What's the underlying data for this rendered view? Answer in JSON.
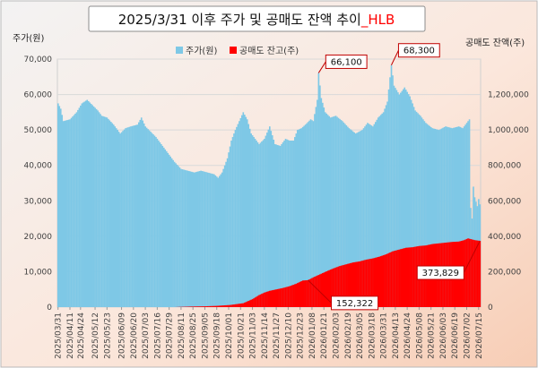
{
  "chart_data": {
    "type": "area",
    "title_main": "2025/3/31 이후 주가 및 공매도 잔액 추이",
    "title_ticker": "_HLB",
    "ylabel_left": "주가(원)",
    "ylabel_right": "공매도 잔액(주)",
    "ylim_left": [
      0,
      70000
    ],
    "ylim_right": [
      0,
      1400000
    ],
    "yticks_left": [
      "0",
      "10,000",
      "20,000",
      "30,000",
      "40,000",
      "50,000",
      "60,000",
      "70,000"
    ],
    "yticks_right": [
      "0",
      "200,000",
      "400,000",
      "600,000",
      "800,000",
      "1,000,000",
      "1,200,000"
    ],
    "grid": true,
    "legend_position": "top-center",
    "x_ticks": [
      "2025/03/31",
      "2025/04/11",
      "2025/04/24",
      "2025/05/12",
      "2025/05/23",
      "2025/06/09",
      "2025/06/20",
      "2025/07/03",
      "2025/07/16",
      "2025/07/29",
      "2025/08/11",
      "2025/08/25",
      "2025/09/05",
      "2025/09/18",
      "2025/10/01",
      "2025/10/21",
      "2025/11/03",
      "2025/11/14",
      "2025/11/27",
      "2025/12/10",
      "2025/12/23",
      "2026/01/08",
      "2026/01/21",
      "2026/02/03",
      "2026/02/19",
      "2026/03/05",
      "2026/03/18",
      "2026/03/31",
      "2026/04/13",
      "2026/04/24",
      "2026/05/08",
      "2026/05/21",
      "2026/06/03",
      "2026/06/19",
      "2026/07/02",
      "2026/07/15"
    ],
    "x_anchor_index": [
      0,
      9,
      17,
      28,
      37,
      48,
      57,
      66,
      75,
      84,
      93,
      102,
      111,
      120,
      129,
      138,
      147,
      156,
      165,
      174,
      183,
      192,
      201,
      210,
      219,
      228,
      237,
      246,
      255,
      264,
      273,
      282,
      291,
      300,
      309,
      318
    ],
    "series": [
      {
        "name": "주가(원)",
        "axis": "left",
        "color": "#7ec8e6",
        "anchors": [
          [
            0,
            57500
          ],
          [
            2,
            56000
          ],
          [
            4,
            52500
          ],
          [
            9,
            53000
          ],
          [
            14,
            55000
          ],
          [
            18,
            57500
          ],
          [
            22,
            58500
          ],
          [
            26,
            57000
          ],
          [
            30,
            55500
          ],
          [
            33,
            54000
          ],
          [
            37,
            53500
          ],
          [
            42,
            51500
          ],
          [
            47,
            49000
          ],
          [
            51,
            50500
          ],
          [
            55,
            51000
          ],
          [
            60,
            51500
          ],
          [
            63,
            53500
          ],
          [
            66,
            51000
          ],
          [
            70,
            49500
          ],
          [
            74,
            48000
          ],
          [
            78,
            46000
          ],
          [
            83,
            43500
          ],
          [
            88,
            41000
          ],
          [
            93,
            39000
          ],
          [
            98,
            38500
          ],
          [
            103,
            38000
          ],
          [
            108,
            38500
          ],
          [
            113,
            38000
          ],
          [
            118,
            37500
          ],
          [
            121,
            36500
          ],
          [
            124,
            38000
          ],
          [
            128,
            42000
          ],
          [
            131,
            47000
          ],
          [
            134,
            50000
          ],
          [
            137,
            52500
          ],
          [
            140,
            55000
          ],
          [
            143,
            53000
          ],
          [
            146,
            49000
          ],
          [
            148,
            48000
          ],
          [
            152,
            46000
          ],
          [
            156,
            47500
          ],
          [
            160,
            51000
          ],
          [
            164,
            46000
          ],
          [
            168,
            45500
          ],
          [
            172,
            47500
          ],
          [
            175,
            47000
          ],
          [
            178,
            47000
          ],
          [
            181,
            50000
          ],
          [
            184,
            50500
          ],
          [
            187,
            51500
          ],
          [
            191,
            53000
          ],
          [
            193,
            52500
          ],
          [
            196,
            58500
          ],
          [
            197,
            66100
          ],
          [
            199,
            59000
          ],
          [
            202,
            55000
          ],
          [
            206,
            53500
          ],
          [
            210,
            54000
          ],
          [
            215,
            52500
          ],
          [
            220,
            50500
          ],
          [
            225,
            49000
          ],
          [
            230,
            50000
          ],
          [
            234,
            52000
          ],
          [
            238,
            51000
          ],
          [
            242,
            53500
          ],
          [
            246,
            55000
          ],
          [
            249,
            58000
          ],
          [
            252,
            68300
          ],
          [
            254,
            62500
          ],
          [
            258,
            60000
          ],
          [
            262,
            62000
          ],
          [
            266,
            59500
          ],
          [
            270,
            55500
          ],
          [
            274,
            54000
          ],
          [
            278,
            52000
          ],
          [
            283,
            50500
          ],
          [
            288,
            50000
          ],
          [
            293,
            51000
          ],
          [
            298,
            50500
          ],
          [
            303,
            51000
          ],
          [
            306,
            50500
          ],
          [
            309,
            52000
          ],
          [
            311,
            53000
          ],
          [
            312,
            28000
          ],
          [
            313,
            25000
          ],
          [
            314,
            34000
          ],
          [
            315,
            31000
          ],
          [
            317,
            28500
          ],
          [
            318,
            30500
          ],
          [
            319,
            29000
          ]
        ]
      },
      {
        "name": "공매도 잔고(주)",
        "axis": "right",
        "color": "#ff0000",
        "anchors": [
          [
            0,
            0
          ],
          [
            88,
            0
          ],
          [
            93,
            1500
          ],
          [
            100,
            3000
          ],
          [
            110,
            4500
          ],
          [
            120,
            7000
          ],
          [
            130,
            12000
          ],
          [
            140,
            22000
          ],
          [
            147,
            45000
          ],
          [
            152,
            68000
          ],
          [
            156,
            82000
          ],
          [
            160,
            92000
          ],
          [
            165,
            100000
          ],
          [
            170,
            108000
          ],
          [
            175,
            118000
          ],
          [
            180,
            132000
          ],
          [
            185,
            150000
          ],
          [
            189,
            152322
          ],
          [
            193,
            168000
          ],
          [
            198,
            185000
          ],
          [
            203,
            202000
          ],
          [
            208,
            218000
          ],
          [
            213,
            232000
          ],
          [
            218,
            242000
          ],
          [
            223,
            252000
          ],
          [
            228,
            258000
          ],
          [
            233,
            268000
          ],
          [
            238,
            275000
          ],
          [
            243,
            285000
          ],
          [
            248,
            298000
          ],
          [
            253,
            315000
          ],
          [
            258,
            325000
          ],
          [
            263,
            335000
          ],
          [
            268,
            338000
          ],
          [
            273,
            345000
          ],
          [
            278,
            348000
          ],
          [
            283,
            356000
          ],
          [
            288,
            360000
          ],
          [
            293,
            364000
          ],
          [
            298,
            368000
          ],
          [
            303,
            370000
          ],
          [
            307,
            378000
          ],
          [
            310,
            388000
          ],
          [
            312,
            384000
          ],
          [
            315,
            378000
          ],
          [
            319,
            373829
          ]
        ]
      }
    ],
    "annotations": [
      {
        "label": "66,100",
        "series": "주가(원)",
        "index": 197,
        "value": 66100
      },
      {
        "label": "68,300",
        "series": "주가(원)",
        "index": 252,
        "value": 68300
      },
      {
        "label": "152,322",
        "series": "공매도 잔고(주)",
        "index": 189,
        "value": 152322
      },
      {
        "label": "373,829",
        "series": "공매도 잔고(주)",
        "index": 319,
        "value": 373829
      }
    ]
  }
}
